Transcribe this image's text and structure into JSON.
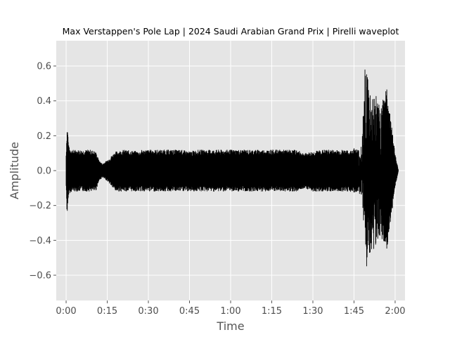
{
  "chart_data": {
    "type": "line",
    "title": "Max Verstappen's Pole Lap | 2024 Saudi Arabian Grand Prix | Pirelli waveplot",
    "xlabel": "Time",
    "ylabel": "Amplitude",
    "xlim": [
      -0.06,
      2.06
    ],
    "ylim": [
      -0.745,
      0.745
    ],
    "xticks": [
      {
        "value": 0.0,
        "label": "0:00"
      },
      {
        "value": 0.25,
        "label": "0:15"
      },
      {
        "value": 0.5,
        "label": "0:30"
      },
      {
        "value": 0.75,
        "label": "0:45"
      },
      {
        "value": 1.0,
        "label": "1:00"
      },
      {
        "value": 1.25,
        "label": "1:15"
      },
      {
        "value": 1.5,
        "label": "1:30"
      },
      {
        "value": 1.75,
        "label": "1:45"
      },
      {
        "value": 2.0,
        "label": "2:00"
      }
    ],
    "yticks": [
      {
        "value": 0.6,
        "label": "0.6"
      },
      {
        "value": 0.4,
        "label": "0.4"
      },
      {
        "value": 0.2,
        "label": "0.2"
      },
      {
        "value": 0.0,
        "label": "0.0"
      },
      {
        "value": -0.2,
        "label": "−0.2"
      },
      {
        "value": -0.4,
        "label": "−0.4"
      },
      {
        "value": -0.6,
        "label": "−0.6"
      }
    ],
    "grid": true,
    "series_color": "#000000",
    "background_color": "#e5e5e5",
    "grid_color": "#ffffff",
    "envelope": {
      "x": [
        0.0,
        0.005,
        0.01,
        0.015,
        0.02,
        0.04,
        0.06,
        0.1,
        0.15,
        0.18,
        0.2,
        0.22,
        0.25,
        0.3,
        0.35,
        0.45,
        0.46,
        0.5,
        0.55,
        0.6,
        0.65,
        0.7,
        0.75,
        0.8,
        0.9,
        1.0,
        1.1,
        1.15,
        1.2,
        1.3,
        1.4,
        1.45,
        1.5,
        1.55,
        1.6,
        1.65,
        1.7,
        1.72,
        1.75,
        1.78,
        1.8,
        1.82,
        1.84,
        1.86,
        1.88,
        1.9,
        1.95,
        2.0,
        2.02
      ],
      "max": [
        0.1,
        0.25,
        0.24,
        0.15,
        0.13,
        0.12,
        0.12,
        0.12,
        0.12,
        0.11,
        0.06,
        0.04,
        0.06,
        0.11,
        0.12,
        0.11,
        0.12,
        0.12,
        0.12,
        0.12,
        0.12,
        0.12,
        0.11,
        0.12,
        0.12,
        0.12,
        0.12,
        0.12,
        0.12,
        0.12,
        0.12,
        0.1,
        0.11,
        0.12,
        0.12,
        0.12,
        0.12,
        0.11,
        0.13,
        0.12,
        0.2,
        0.68,
        0.55,
        0.45,
        0.48,
        0.38,
        0.47,
        0.1,
        0.002
      ],
      "min": [
        -0.1,
        -0.25,
        -0.24,
        -0.14,
        -0.13,
        -0.12,
        -0.12,
        -0.12,
        -0.12,
        -0.12,
        -0.06,
        -0.04,
        -0.06,
        -0.12,
        -0.12,
        -0.12,
        -0.12,
        -0.12,
        -0.12,
        -0.12,
        -0.12,
        -0.12,
        -0.12,
        -0.12,
        -0.12,
        -0.12,
        -0.12,
        -0.12,
        -0.12,
        -0.12,
        -0.12,
        -0.1,
        -0.12,
        -0.12,
        -0.12,
        -0.12,
        -0.12,
        -0.12,
        -0.13,
        -0.12,
        -0.2,
        -0.68,
        -0.55,
        -0.45,
        -0.47,
        -0.37,
        -0.46,
        -0.1,
        -0.002
      ]
    }
  }
}
